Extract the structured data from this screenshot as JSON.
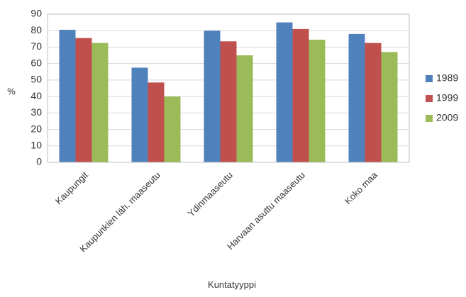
{
  "chart_data": {
    "type": "bar",
    "title": "",
    "xlabel": "Kuntatyyppi",
    "ylabel": "%",
    "ylim": [
      0,
      90
    ],
    "yticks": [
      0,
      10,
      20,
      30,
      40,
      50,
      60,
      70,
      80,
      90
    ],
    "grid": true,
    "legend_position": "right",
    "categories": [
      "Kaupungit",
      "Kaupunkien läh. maaseutu",
      "Ydinmaaseutu",
      "Harvaan asuttu maaseutu",
      "Koko maa"
    ],
    "series": [
      {
        "name": "1989",
        "color": "#4F81BD",
        "values": [
          80.5,
          57.5,
          80,
          85,
          78
        ]
      },
      {
        "name": "1999",
        "color": "#C0504D",
        "values": [
          75.5,
          48.5,
          73.5,
          81,
          72.5
        ]
      },
      {
        "name": "2009",
        "color": "#9BBB59",
        "values": [
          72.5,
          40,
          65,
          74.5,
          67
        ]
      }
    ]
  }
}
